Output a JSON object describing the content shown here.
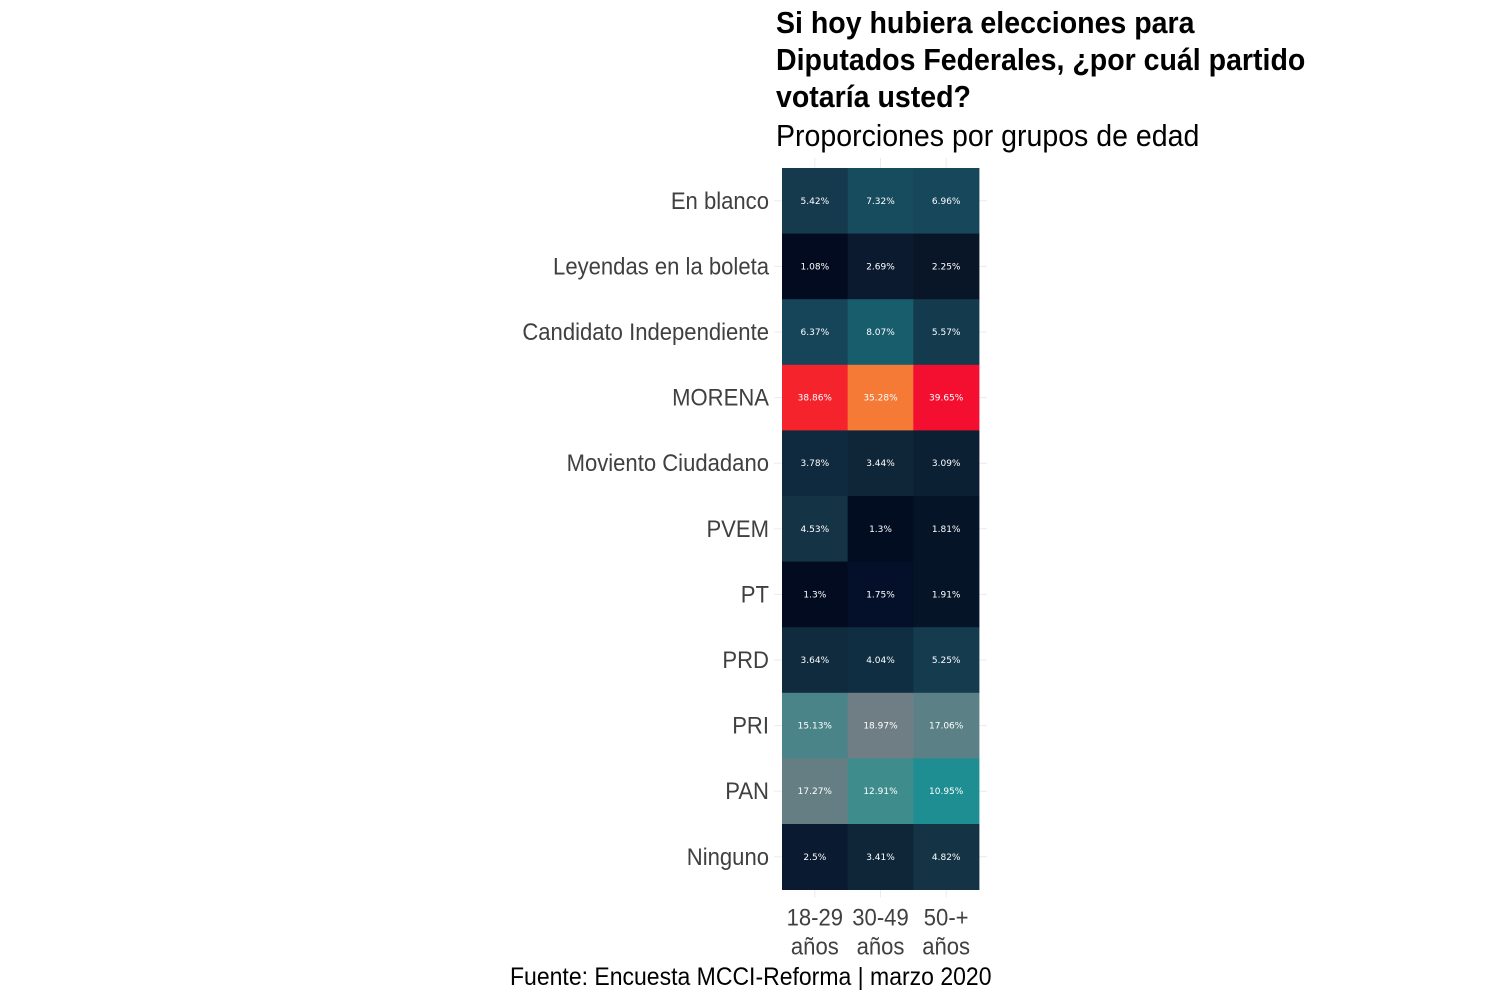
{
  "chart_data": {
    "type": "heatmap",
    "title": "Si hoy hubiera elecciones para Diputados Federales, ¿por cuál partido votaría usted?",
    "subtitle": "Proporciones por grupos de edad",
    "caption": "Fuente: Encuesta MCCI-Reforma | marzo 2020",
    "xlabel": "",
    "ylabel": "",
    "grid": true,
    "legend": "none",
    "x_categories": [
      [
        "18-29",
        "años"
      ],
      [
        "30-49",
        "años"
      ],
      [
        "50-+",
        "años"
      ]
    ],
    "y_categories": [
      "En blanco",
      "Leyendas en la boleta",
      "Candidato Independiente",
      "MORENA",
      "Moviento Ciudadano",
      "PVEM",
      "PT",
      "PRD",
      "PRI",
      "PAN",
      "Ninguno"
    ],
    "values": [
      [
        5.42,
        7.32,
        6.96
      ],
      [
        1.08,
        2.69,
        2.25
      ],
      [
        6.37,
        8.07,
        5.57
      ],
      [
        38.86,
        35.28,
        39.65
      ],
      [
        3.78,
        3.44,
        3.09
      ],
      [
        4.53,
        1.3,
        1.81
      ],
      [
        1.3,
        1.75,
        1.91
      ],
      [
        3.64,
        4.04,
        5.25
      ],
      [
        15.13,
        18.97,
        17.06
      ],
      [
        17.27,
        12.91,
        10.95
      ],
      [
        2.5,
        3.41,
        4.82
      ]
    ],
    "labels": [
      [
        "5.42%",
        "7.32%",
        "6.96%"
      ],
      [
        "1.08%",
        "2.69%",
        "2.25%"
      ],
      [
        "6.37%",
        "8.07%",
        "5.57%"
      ],
      [
        "38.86%",
        "35.28%",
        "39.65%"
      ],
      [
        "3.78%",
        "3.44%",
        "3.09%"
      ],
      [
        "4.53%",
        "1.3%",
        "1.81%"
      ],
      [
        "1.3%",
        "1.75%",
        "1.91%"
      ],
      [
        "3.64%",
        "4.04%",
        "5.25%"
      ],
      [
        "15.13%",
        "18.97%",
        "17.06%"
      ],
      [
        "17.27%",
        "12.91%",
        "10.95%"
      ],
      [
        "2.5%",
        "3.41%",
        "4.82%"
      ]
    ],
    "colors": [
      [
        "#153a4e",
        "#174b5e",
        "#16475b"
      ],
      [
        "#020b1f",
        "#0b1a2e",
        "#081628"
      ],
      [
        "#16455a",
        "#175d6c",
        "#143a4e"
      ],
      [
        "#f5232c",
        "#f47a36",
        "#f40f30"
      ],
      [
        "#0f2a3e",
        "#0f2638",
        "#0c2034"
      ],
      [
        "#143446",
        "#030d21",
        "#061428"
      ],
      [
        "#020b1f",
        "#04102a",
        "#061428"
      ],
      [
        "#102a3e",
        "#102e42",
        "#153b4f"
      ],
      [
        "#4b8488",
        "#6f7e84",
        "#5b8186"
      ],
      [
        "#647e84",
        "#3f8c8d",
        "#1e8e93"
      ],
      [
        "#0a1a30",
        "#0f2638",
        "#143446"
      ]
    ]
  }
}
